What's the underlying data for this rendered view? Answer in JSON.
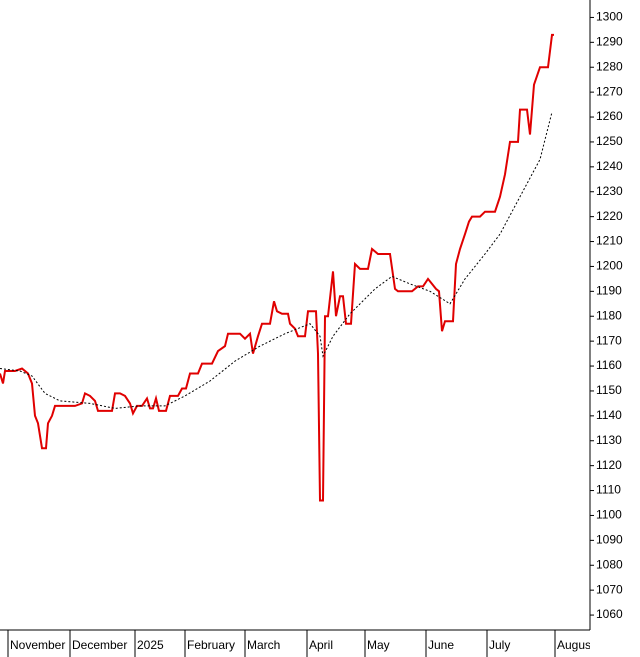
{
  "chart_data": {
    "type": "line",
    "xlim": [
      0,
      590
    ],
    "ylim": [
      1054,
      1307
    ],
    "yticks": [
      1060,
      1070,
      1080,
      1090,
      1100,
      1110,
      1120,
      1130,
      1140,
      1150,
      1160,
      1170,
      1180,
      1190,
      1200,
      1210,
      1220,
      1230,
      1240,
      1250,
      1260,
      1270,
      1280,
      1290,
      1300
    ],
    "xticks": [
      {
        "value": 8,
        "label": "November"
      },
      {
        "value": 70,
        "label": "December"
      },
      {
        "value": 135,
        "label": "2025"
      },
      {
        "value": 185,
        "label": "February"
      },
      {
        "value": 245,
        "label": "March"
      },
      {
        "value": 307,
        "label": "April"
      },
      {
        "value": 365,
        "label": "May"
      },
      {
        "value": 426,
        "label": "June"
      },
      {
        "value": 487,
        "label": "July"
      },
      {
        "value": 555,
        "label": "Augus"
      }
    ],
    "series": [
      {
        "color": "#e00000",
        "x": [
          0,
          3,
          5,
          15,
          22,
          28,
          32,
          35,
          38,
          42,
          46,
          48,
          52,
          55,
          65,
          75,
          82,
          85,
          90,
          95,
          98,
          105,
          112,
          115,
          120,
          125,
          130,
          133,
          137,
          142,
          147,
          150,
          153,
          156,
          159,
          166,
          170,
          178,
          182,
          186,
          190,
          198,
          202,
          212,
          218,
          225,
          228,
          240,
          245,
          250,
          253,
          258,
          262,
          270,
          274,
          277,
          282,
          288,
          290,
          295,
          298,
          305,
          308,
          316,
          318,
          320,
          323,
          325,
          328,
          333,
          336,
          340,
          343,
          346,
          351,
          355,
          360,
          368,
          372,
          378,
          390,
          395,
          398,
          412,
          418,
          423,
          428,
          432,
          436,
          439,
          442,
          445,
          453,
          456,
          460,
          465,
          469,
          472,
          480,
          485,
          495,
          500,
          505,
          510,
          518,
          520,
          527,
          530,
          534,
          540,
          548,
          552,
          554
        ],
        "values": [
          1157,
          1153,
          1158,
          1158,
          1159,
          1157,
          1153,
          1140,
          1137,
          1127,
          1127,
          1137,
          1140,
          1144,
          1144,
          1144,
          1145,
          1149,
          1148,
          1146,
          1142,
          1142,
          1142,
          1149,
          1149,
          1148,
          1145,
          1141,
          1144,
          1144,
          1147,
          1143,
          1143,
          1147,
          1142,
          1142,
          1148,
          1148,
          1151,
          1151,
          1157,
          1157,
          1161,
          1161,
          1166,
          1168,
          1173,
          1173,
          1171,
          1173,
          1165,
          1172,
          1177,
          1177,
          1186,
          1182,
          1181,
          1181,
          1177,
          1175,
          1172,
          1172,
          1182,
          1182,
          1165,
          1106,
          1106,
          1180,
          1180,
          1198,
          1180,
          1188,
          1188,
          1177,
          1177,
          1201,
          1199,
          1199,
          1207,
          1205,
          1205,
          1191,
          1190,
          1190,
          1192,
          1192,
          1195,
          1193,
          1191,
          1190,
          1174,
          1178,
          1178,
          1201,
          1207,
          1213,
          1218,
          1220,
          1220,
          1222,
          1222,
          1228,
          1237,
          1250,
          1250,
          1263,
          1263,
          1253,
          1273,
          1280,
          1280,
          1293,
          1293
        ]
      },
      {
        "color": "#000000",
        "x": [
          0,
          20,
          32,
          45,
          60,
          90,
          115,
          140,
          165,
          185,
          210,
          235,
          260,
          285,
          310,
          320,
          323,
          333,
          350,
          375,
          392,
          410,
          430,
          450,
          465,
          485,
          500,
          520,
          540,
          552
        ],
        "values": [
          1159,
          1158,
          1156,
          1149,
          1146,
          1145,
          1143,
          1144,
          1144,
          1148,
          1154,
          1162,
          1168,
          1173,
          1177,
          1172,
          1164,
          1172,
          1181,
          1191,
          1196,
          1193,
          1190,
          1185,
          1195,
          1205,
          1213,
          1228,
          1243,
          1262
        ]
      }
    ]
  }
}
